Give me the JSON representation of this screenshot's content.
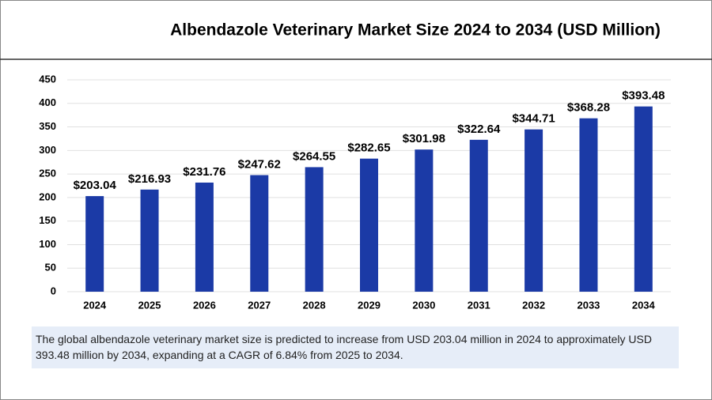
{
  "chart_data": {
    "type": "bar",
    "title": "Albendazole Veterinary Market Size 2024 to 2034 (USD Million)",
    "categories": [
      "2024",
      "2025",
      "2026",
      "2027",
      "2028",
      "2029",
      "2030",
      "2031",
      "2032",
      "2033",
      "2034"
    ],
    "values": [
      203.04,
      216.93,
      231.76,
      247.62,
      264.55,
      282.65,
      301.98,
      322.64,
      344.71,
      368.28,
      393.48
    ],
    "value_labels": [
      "$203.04",
      "$216.93",
      "$231.76",
      "$247.62",
      "$264.55",
      "$282.65",
      "$301.98",
      "$322.64",
      "$344.71",
      "$368.28",
      "$393.48"
    ],
    "color": "#1b3aa6",
    "ylim": [
      0,
      450
    ],
    "yticks": [
      0,
      50,
      100,
      150,
      200,
      250,
      300,
      350,
      400,
      450
    ],
    "grid": true,
    "note": "The global albendazole veterinary market size is predicted to increase from USD 203.04 million in 2024 to approximately USD 393.48 million by 2034, expanding at a CAGR of 6.84% from 2025 to 2034."
  }
}
